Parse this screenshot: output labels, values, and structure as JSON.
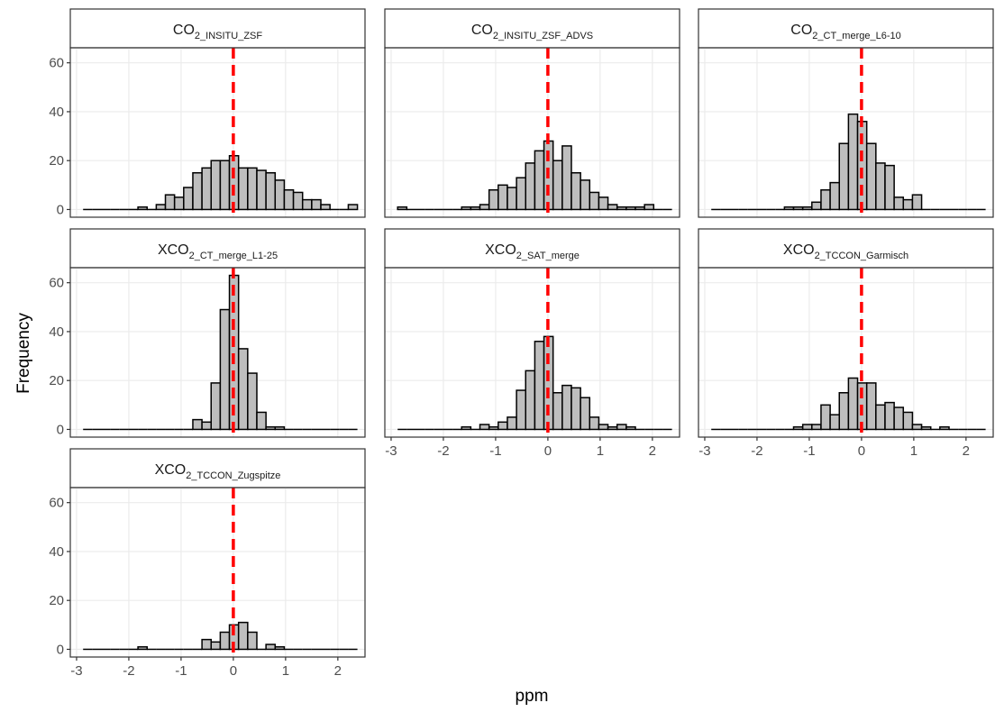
{
  "x_label": "ppm",
  "y_label": "Frequency",
  "chart_data": [
    {
      "type": "histogram",
      "title": [
        "CO",
        "2_INSITU_ZSF"
      ],
      "x_axis": false,
      "y_axis": true,
      "bins": [
        -2.875,
        -2.7,
        -2.525,
        -2.35,
        -2.175,
        -2.0,
        -1.825,
        -1.65,
        -1.475,
        -1.3,
        -1.125,
        -0.95,
        -0.775,
        -0.6,
        -0.425,
        -0.25,
        -0.075,
        0.1,
        0.275,
        0.45,
        0.625,
        0.8,
        0.975,
        1.15,
        1.325,
        1.5,
        1.675,
        1.85,
        2.025,
        2.2,
        2.375
      ],
      "values": [
        0,
        0,
        0,
        0,
        0,
        0,
        1,
        0,
        2,
        6,
        5,
        9,
        15,
        17,
        20,
        20,
        22,
        17,
        17,
        16,
        15,
        12,
        8,
        7,
        4,
        4,
        2,
        0,
        0,
        2
      ],
      "color": "#bebebe",
      "edge_color": "#000000",
      "vline": 0,
      "vline_color": "#ff0000",
      "xlim": [
        -3.12,
        2.52
      ],
      "ylim": [
        -3.15,
        66.15
      ],
      "xticks": [
        -3,
        -2,
        -1,
        0,
        1,
        2
      ],
      "yticks": [
        0,
        20,
        40,
        60
      ],
      "grid": true
    },
    {
      "type": "histogram",
      "title": [
        "CO",
        "2_INSITU_ZSF_ADVS"
      ],
      "x_axis": false,
      "y_axis": false,
      "bins": [
        -2.875,
        -2.7,
        -2.525,
        -2.35,
        -2.175,
        -2.0,
        -1.825,
        -1.65,
        -1.475,
        -1.3,
        -1.125,
        -0.95,
        -0.775,
        -0.6,
        -0.425,
        -0.25,
        -0.075,
        0.1,
        0.275,
        0.45,
        0.625,
        0.8,
        0.975,
        1.15,
        1.325,
        1.5,
        1.675,
        1.85,
        2.025,
        2.2,
        2.375
      ],
      "values": [
        1,
        0,
        0,
        0,
        0,
        0,
        0,
        1,
        1,
        2,
        8,
        10,
        9,
        13,
        19,
        24,
        28,
        20,
        26,
        15,
        12,
        7,
        5,
        2,
        1,
        1,
        1,
        2,
        0,
        0
      ],
      "color": "#bebebe",
      "edge_color": "#000000",
      "vline": 0,
      "vline_color": "#ff0000",
      "xlim": [
        -3.12,
        2.52
      ],
      "ylim": [
        -3.15,
        66.15
      ],
      "xticks": [
        -3,
        -2,
        -1,
        0,
        1,
        2
      ],
      "yticks": [
        0,
        20,
        40,
        60
      ],
      "grid": true
    },
    {
      "type": "histogram",
      "title": [
        "CO",
        "2_CT_merge_L6-10"
      ],
      "x_axis": false,
      "y_axis": false,
      "bins": [
        -2.875,
        -2.7,
        -2.525,
        -2.35,
        -2.175,
        -2.0,
        -1.825,
        -1.65,
        -1.475,
        -1.3,
        -1.125,
        -0.95,
        -0.775,
        -0.6,
        -0.425,
        -0.25,
        -0.075,
        0.1,
        0.275,
        0.45,
        0.625,
        0.8,
        0.975,
        1.15,
        1.325,
        1.5,
        1.675,
        1.85,
        2.025,
        2.2,
        2.375
      ],
      "values": [
        0,
        0,
        0,
        0,
        0,
        0,
        0,
        0,
        1,
        1,
        1,
        3,
        8,
        11,
        27,
        39,
        36,
        27,
        19,
        18,
        5,
        4,
        6,
        0,
        0,
        0,
        0,
        0,
        0,
        0
      ],
      "color": "#bebebe",
      "edge_color": "#000000",
      "vline": 0,
      "vline_color": "#ff0000",
      "xlim": [
        -3.12,
        2.52
      ],
      "ylim": [
        -3.15,
        66.15
      ],
      "xticks": [
        -3,
        -2,
        -1,
        0,
        1,
        2
      ],
      "yticks": [
        0,
        20,
        40,
        60
      ],
      "grid": true
    },
    {
      "type": "histogram",
      "title": [
        "XCO",
        "2_CT_merge_L1-25"
      ],
      "x_axis": false,
      "y_axis": true,
      "bins": [
        -2.875,
        -2.7,
        -2.525,
        -2.35,
        -2.175,
        -2.0,
        -1.825,
        -1.65,
        -1.475,
        -1.3,
        -1.125,
        -0.95,
        -0.775,
        -0.6,
        -0.425,
        -0.25,
        -0.075,
        0.1,
        0.275,
        0.45,
        0.625,
        0.8,
        0.975,
        1.15,
        1.325,
        1.5,
        1.675,
        1.85,
        2.025,
        2.2,
        2.375
      ],
      "values": [
        0,
        0,
        0,
        0,
        0,
        0,
        0,
        0,
        0,
        0,
        0,
        0,
        4,
        3,
        19,
        49,
        63,
        33,
        23,
        7,
        1,
        1,
        0,
        0,
        0,
        0,
        0,
        0,
        0,
        0
      ],
      "color": "#bebebe",
      "edge_color": "#000000",
      "vline": 0,
      "vline_color": "#ff0000",
      "xlim": [
        -3.12,
        2.52
      ],
      "ylim": [
        -3.15,
        66.15
      ],
      "xticks": [
        -3,
        -2,
        -1,
        0,
        1,
        2
      ],
      "yticks": [
        0,
        20,
        40,
        60
      ],
      "grid": true
    },
    {
      "type": "histogram",
      "title": [
        "XCO",
        "2_SAT_merge"
      ],
      "x_axis": true,
      "y_axis": false,
      "bins": [
        -2.875,
        -2.7,
        -2.525,
        -2.35,
        -2.175,
        -2.0,
        -1.825,
        -1.65,
        -1.475,
        -1.3,
        -1.125,
        -0.95,
        -0.775,
        -0.6,
        -0.425,
        -0.25,
        -0.075,
        0.1,
        0.275,
        0.45,
        0.625,
        0.8,
        0.975,
        1.15,
        1.325,
        1.5,
        1.675,
        1.85,
        2.025,
        2.2,
        2.375
      ],
      "values": [
        0,
        0,
        0,
        0,
        0,
        0,
        0,
        1,
        0,
        2,
        1,
        3,
        5,
        16,
        24,
        36,
        38,
        15,
        18,
        17,
        13,
        5,
        2,
        1,
        2,
        1,
        0,
        0,
        0,
        0
      ],
      "color": "#bebebe",
      "edge_color": "#000000",
      "vline": 0,
      "vline_color": "#ff0000",
      "xlim": [
        -3.12,
        2.52
      ],
      "ylim": [
        -3.15,
        66.15
      ],
      "xticks": [
        -3,
        -2,
        -1,
        0,
        1,
        2
      ],
      "yticks": [
        0,
        20,
        40,
        60
      ],
      "grid": true
    },
    {
      "type": "histogram",
      "title": [
        "XCO",
        "2_TCCON_Garmisch"
      ],
      "x_axis": true,
      "y_axis": false,
      "bins": [
        -2.875,
        -2.7,
        -2.525,
        -2.35,
        -2.175,
        -2.0,
        -1.825,
        -1.65,
        -1.475,
        -1.3,
        -1.125,
        -0.95,
        -0.775,
        -0.6,
        -0.425,
        -0.25,
        -0.075,
        0.1,
        0.275,
        0.45,
        0.625,
        0.8,
        0.975,
        1.15,
        1.325,
        1.5,
        1.675,
        1.85,
        2.025,
        2.2,
        2.375
      ],
      "values": [
        0,
        0,
        0,
        0,
        0,
        0,
        0,
        0,
        0,
        1,
        2,
        2,
        10,
        6,
        15,
        21,
        19,
        19,
        10,
        11,
        9,
        7,
        2,
        1,
        0,
        1,
        0,
        0,
        0,
        0
      ],
      "color": "#bebebe",
      "edge_color": "#000000",
      "vline": 0,
      "vline_color": "#ff0000",
      "xlim": [
        -3.12,
        2.52
      ],
      "ylim": [
        -3.15,
        66.15
      ],
      "xticks": [
        -3,
        -2,
        -1,
        0,
        1,
        2
      ],
      "yticks": [
        0,
        20,
        40,
        60
      ],
      "grid": true
    },
    {
      "type": "histogram",
      "title": [
        "XCO",
        "2_TCCON_Zugspitze"
      ],
      "x_axis": true,
      "y_axis": true,
      "bins": [
        -2.875,
        -2.7,
        -2.525,
        -2.35,
        -2.175,
        -2.0,
        -1.825,
        -1.65,
        -1.475,
        -1.3,
        -1.125,
        -0.95,
        -0.775,
        -0.6,
        -0.425,
        -0.25,
        -0.075,
        0.1,
        0.275,
        0.45,
        0.625,
        0.8,
        0.975,
        1.15,
        1.325,
        1.5,
        1.675,
        1.85,
        2.025,
        2.2,
        2.375
      ],
      "values": [
        0,
        0,
        0,
        0,
        0,
        0,
        1,
        0,
        0,
        0,
        0,
        0,
        0,
        4,
        3,
        7,
        10,
        11,
        7,
        0,
        2,
        1,
        0,
        0,
        0,
        0,
        0,
        0,
        0,
        0
      ],
      "color": "#bebebe",
      "edge_color": "#000000",
      "vline": 0,
      "vline_color": "#ff0000",
      "xlim": [
        -3.12,
        2.52
      ],
      "ylim": [
        -3.15,
        66.15
      ],
      "xticks": [
        -3,
        -2,
        -1,
        0,
        1,
        2
      ],
      "yticks": [
        0,
        20,
        40,
        60
      ],
      "grid": true
    }
  ]
}
